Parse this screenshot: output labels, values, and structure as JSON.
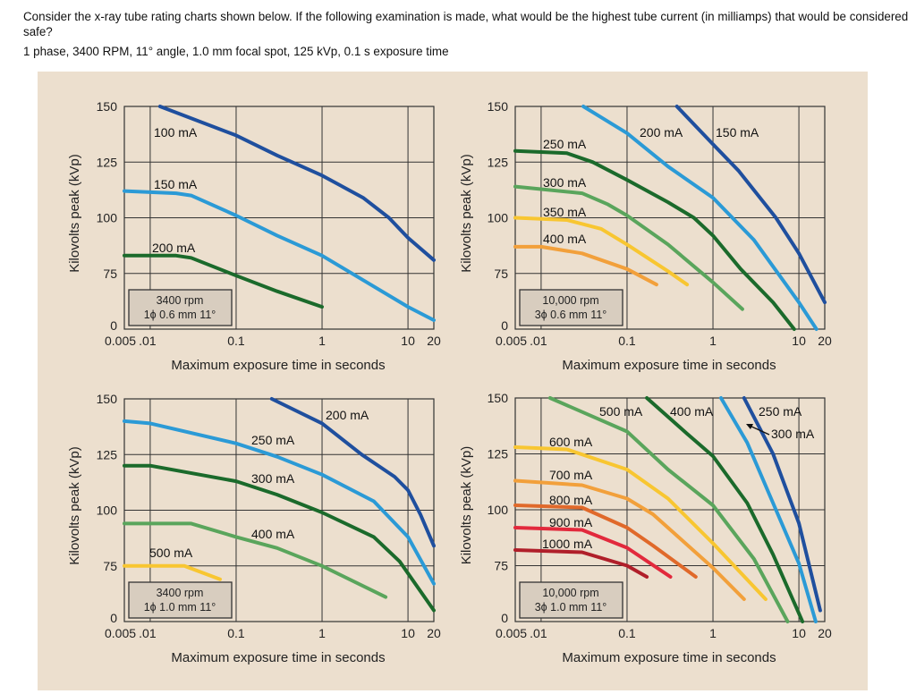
{
  "question": {
    "text": "Consider the  x-ray tube rating charts shown below.  If the following examination is made, what would be the highest tube current (in milliamps) that would be considered safe?",
    "exam_params": "1 phase, 3400 RPM, 11° angle, 1.0 mm focal spot, 125 kVp, 0.1 s exposure time"
  },
  "chart_data": [
    {
      "type": "line",
      "spec_lines": [
        "3400 rpm",
        "1ϕ 0.6 mm 11°"
      ],
      "xlabel": "Maximum exposure time in seconds",
      "ylabel": "Kilovolts peak (kVp)",
      "x_scale": "log",
      "xlim": [
        0.005,
        20
      ],
      "x_ticks": [
        "0.005",
        ".01",
        "0.1",
        "1",
        "10",
        "20"
      ],
      "y_ticks": [
        "150",
        "125",
        "100",
        "75",
        "0"
      ],
      "grid": true,
      "series": [
        {
          "name": "100 mA",
          "color": "#1f4f9e",
          "points": [
            [
              0.013,
              150
            ],
            [
              0.1,
              137
            ],
            [
              0.3,
              128
            ],
            [
              1,
              119
            ],
            [
              3,
              109
            ],
            [
              6,
              100
            ],
            [
              10,
              91
            ],
            [
              20,
              81
            ]
          ]
        },
        {
          "name": "150 mA",
          "color": "#2b9ad6",
          "points": [
            [
              0.005,
              112
            ],
            [
              0.02,
              111
            ],
            [
              0.03,
              110
            ],
            [
              0.1,
              101
            ],
            [
              0.3,
              92
            ],
            [
              1,
              83
            ],
            [
              3,
              72
            ],
            [
              10,
              60
            ],
            [
              20,
              54
            ]
          ]
        },
        {
          "name": "200 mA",
          "color": "#1b6a2b",
          "points": [
            [
              0.005,
              83
            ],
            [
              0.02,
              83
            ],
            [
              0.03,
              82
            ],
            [
              0.1,
              74
            ],
            [
              0.3,
              67
            ],
            [
              1,
              60
            ]
          ]
        }
      ]
    },
    {
      "type": "line",
      "spec_lines": [
        "10,000 rpm",
        "3ϕ 0.6 mm 11°"
      ],
      "xlabel": "Maximum exposure time in seconds",
      "ylabel": "Kilovolts peak (kVp)",
      "x_scale": "log",
      "xlim": [
        0.005,
        20
      ],
      "x_ticks": [
        "0.005",
        ".01",
        "0.1",
        "1",
        "10",
        "20"
      ],
      "y_ticks": [
        "150",
        "125",
        "100",
        "75",
        "0"
      ],
      "grid": true,
      "series": [
        {
          "name": "150 mA",
          "color": "#1f4f9e",
          "points": [
            [
              0.38,
              150
            ],
            [
              1,
              133
            ],
            [
              2,
              121
            ],
            [
              5.4,
              100
            ],
            [
              10,
              84
            ],
            [
              20,
              62
            ]
          ]
        },
        {
          "name": "200 mA",
          "color": "#2b9ad6",
          "points": [
            [
              0.031,
              150
            ],
            [
              0.1,
              138
            ],
            [
              0.3,
              123
            ],
            [
              1,
              109
            ],
            [
              3,
              90
            ],
            [
              10,
              62
            ],
            [
              16,
              50
            ]
          ]
        },
        {
          "name": "250 mA",
          "color": "#1b6a2b",
          "points": [
            [
              0.005,
              130
            ],
            [
              0.02,
              129
            ],
            [
              0.04,
              125
            ],
            [
              0.1,
              117
            ],
            [
              0.3,
              107
            ],
            [
              0.6,
              100
            ],
            [
              1,
              92
            ],
            [
              2.1,
              77
            ],
            [
              5,
              62
            ],
            [
              8.8,
              50
            ]
          ]
        },
        {
          "name": "300 mA",
          "color": "#5aa55c",
          "points": [
            [
              0.005,
              114
            ],
            [
              0.03,
              111
            ],
            [
              0.06,
              106
            ],
            [
              0.1,
              101
            ],
            [
              0.3,
              88
            ],
            [
              1,
              71
            ],
            [
              2.2,
              59
            ]
          ]
        },
        {
          "name": "350 mA",
          "color": "#f8c631",
          "points": [
            [
              0.005,
              100
            ],
            [
              0.02,
              99
            ],
            [
              0.05,
              95
            ],
            [
              0.1,
              88
            ],
            [
              0.3,
              76
            ],
            [
              0.5,
              70
            ]
          ]
        },
        {
          "name": "400 mA",
          "color": "#f2a03b",
          "points": [
            [
              0.005,
              87
            ],
            [
              0.01,
              87
            ],
            [
              0.03,
              84
            ],
            [
              0.1,
              77
            ],
            [
              0.22,
              70
            ]
          ]
        }
      ]
    },
    {
      "type": "line",
      "spec_lines": [
        "3400 rpm",
        "1ϕ 1.0 mm 11°"
      ],
      "xlabel": "Maximum exposure time in seconds",
      "ylabel": "Kilovolts peak (kVp)",
      "x_scale": "log",
      "xlim": [
        0.005,
        20
      ],
      "x_ticks": [
        "0.005",
        ".01",
        "0.1",
        "1",
        "10",
        "20"
      ],
      "y_ticks": [
        "150",
        "125",
        "100",
        "75",
        "0"
      ],
      "grid": true,
      "series": [
        {
          "name": "200 mA",
          "color": "#1f4f9e",
          "points": [
            [
              0.26,
              150
            ],
            [
              1,
              139
            ],
            [
              2.9,
              125
            ],
            [
              7,
              115
            ],
            [
              10,
              109
            ],
            [
              14,
              98
            ],
            [
              20,
              84
            ]
          ]
        },
        {
          "name": "250 mA",
          "color": "#2b9ad6",
          "points": [
            [
              0.005,
              140
            ],
            [
              0.01,
              139
            ],
            [
              0.1,
              130
            ],
            [
              0.3,
              124
            ],
            [
              1,
              116
            ],
            [
              4,
              104
            ],
            [
              10,
              88
            ],
            [
              20,
              67
            ]
          ]
        },
        {
          "name": "300 mA",
          "color": "#1b6a2b",
          "points": [
            [
              0.005,
              120
            ],
            [
              0.01,
              120
            ],
            [
              0.1,
              113
            ],
            [
              0.3,
              107
            ],
            [
              1,
              99
            ],
            [
              4,
              88
            ],
            [
              8,
              77
            ],
            [
              20,
              55
            ]
          ]
        },
        {
          "name": "400 mA",
          "color": "#5aa55c",
          "points": [
            [
              0.005,
              94
            ],
            [
              0.03,
              94
            ],
            [
              0.1,
              88
            ],
            [
              0.3,
              83
            ],
            [
              1,
              75
            ],
            [
              5.5,
              61
            ]
          ]
        },
        {
          "name": "500 mA",
          "color": "#f8c631",
          "points": [
            [
              0.005,
              75
            ],
            [
              0.025,
              75
            ],
            [
              0.065,
              69
            ]
          ]
        }
      ]
    },
    {
      "type": "line",
      "spec_lines": [
        "10,000 rpm",
        "3ϕ 1.0 mm 11°"
      ],
      "xlabel": "Maximum exposure time in seconds",
      "ylabel": "Kilovolts peak (kVp)",
      "x_scale": "log",
      "xlim": [
        0.005,
        20
      ],
      "x_ticks": [
        "0.005",
        ".01",
        "0.1",
        "1",
        "10",
        "20"
      ],
      "y_ticks": [
        "150",
        "125",
        "100",
        "75",
        "0"
      ],
      "grid": true,
      "series": [
        {
          "name": "500 mA",
          "color": "#5aa55c",
          "points": [
            [
              0.0127,
              150
            ],
            [
              0.1,
              135
            ],
            [
              0.3,
              118
            ],
            [
              1,
              102
            ],
            [
              3,
              78
            ],
            [
              7.4,
              50
            ]
          ]
        },
        {
          "name": "400 mA",
          "color": "#1b6a2b",
          "points": [
            [
              0.17,
              150
            ],
            [
              0.5,
              134
            ],
            [
              1,
              124
            ],
            [
              2.5,
              103
            ],
            [
              5,
              80
            ],
            [
              11,
              50
            ]
          ]
        },
        {
          "name": "250 mA",
          "color": "#1f4f9e",
          "points": [
            [
              2.3,
              150
            ],
            [
              5,
              125
            ],
            [
              10,
              94
            ],
            [
              17.7,
              55
            ]
          ]
        },
        {
          "name": "300 mA",
          "color": "#2b9ad6",
          "points": [
            [
              1.24,
              150
            ],
            [
              2.5,
              130
            ],
            [
              5,
              103
            ],
            [
              10,
              76
            ],
            [
              15.7,
              50
            ]
          ]
        },
        {
          "name": "600 mA",
          "color": "#f8c631",
          "points": [
            [
              0.005,
              128
            ],
            [
              0.02,
              127
            ],
            [
              0.1,
              118
            ],
            [
              0.3,
              105
            ],
            [
              1,
              85
            ],
            [
              4.1,
              60
            ]
          ]
        },
        {
          "name": "700 mA",
          "color": "#f2a03b",
          "points": [
            [
              0.005,
              113
            ],
            [
              0.03,
              111
            ],
            [
              0.1,
              105
            ],
            [
              0.2,
              98
            ],
            [
              1,
              74
            ],
            [
              2.3,
              60
            ]
          ]
        },
        {
          "name": "800 mA",
          "color": "#e0692a",
          "points": [
            [
              0.005,
              102
            ],
            [
              0.03,
              101
            ],
            [
              0.1,
              92
            ],
            [
              0.2,
              84
            ],
            [
              0.63,
              70
            ]
          ]
        },
        {
          "name": "900 mA",
          "color": "#e2293c",
          "points": [
            [
              0.005,
              92
            ],
            [
              0.03,
              91
            ],
            [
              0.1,
              83
            ],
            [
              0.32,
              70
            ]
          ]
        },
        {
          "name": "1000 mA",
          "color": "#b01f2a",
          "points": [
            [
              0.005,
              82
            ],
            [
              0.03,
              81
            ],
            [
              0.1,
              75
            ],
            [
              0.17,
              70
            ]
          ]
        }
      ]
    }
  ]
}
